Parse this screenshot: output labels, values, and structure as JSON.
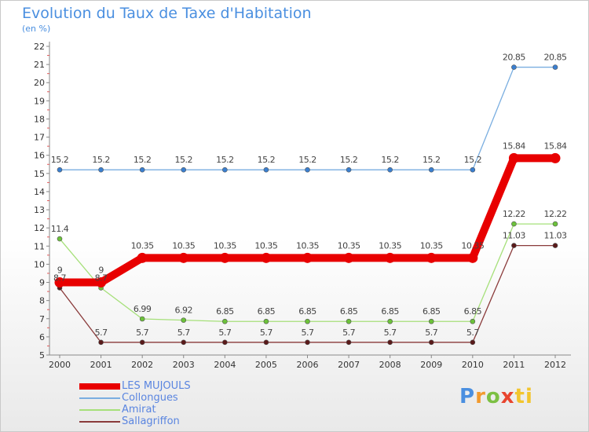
{
  "chart_data": {
    "type": "line",
    "title": "Evolution du Taux de Taxe d'Habitation",
    "unit_label": "(en %)",
    "x": [
      "2000",
      "2001",
      "2002",
      "2003",
      "2004",
      "2005",
      "2006",
      "2007",
      "2008",
      "2009",
      "2010",
      "2011",
      "2012"
    ],
    "ylim": [
      5,
      22
    ],
    "yticks": [
      5,
      6,
      7,
      8,
      9,
      10,
      11,
      12,
      13,
      14,
      15,
      16,
      17,
      18,
      19,
      20,
      21,
      22
    ],
    "grid": false,
    "series": [
      {
        "name": "LES MUJOULS",
        "color": "#e80000",
        "emphasis": true,
        "values": [
          9,
          9,
          10.35,
          10.35,
          10.35,
          10.35,
          10.35,
          10.35,
          10.35,
          10.35,
          10.35,
          15.84,
          15.84
        ],
        "labels": [
          "9",
          "9",
          "10.35",
          "10.35",
          "10.35",
          "10.35",
          "10.35",
          "10.35",
          "10.35",
          "10.35",
          "10.35",
          "15.84",
          "15.84"
        ]
      },
      {
        "name": "Collongues",
        "color": "#7aaee0",
        "point_color": "#3a7fd0",
        "values": [
          15.2,
          15.2,
          15.2,
          15.2,
          15.2,
          15.2,
          15.2,
          15.2,
          15.2,
          15.2,
          15.2,
          20.85,
          20.85
        ],
        "labels": [
          "15.2",
          "15.2",
          "15.2",
          "15.2",
          "15.2",
          "15.2",
          "15.2",
          "15.2",
          "15.2",
          "15.2",
          "15.2",
          "20.85",
          "20.85"
        ]
      },
      {
        "name": "Amirat",
        "color": "#a6e07a",
        "point_color": "#6cc23a",
        "values": [
          11.4,
          8.7,
          6.99,
          6.92,
          6.85,
          6.85,
          6.85,
          6.85,
          6.85,
          6.85,
          6.85,
          12.22,
          12.22
        ],
        "labels": [
          "11.4",
          "8.7",
          "6.99",
          "6.92",
          "6.85",
          "6.85",
          "6.85",
          "6.85",
          "6.85",
          "6.85",
          "6.85",
          "12.22",
          "12.22"
        ]
      },
      {
        "name": "Sallagriffon",
        "color": "#8a3a3a",
        "point_color": "#5a1a1a",
        "values": [
          8.7,
          5.7,
          5.7,
          5.7,
          5.7,
          5.7,
          5.7,
          5.7,
          5.7,
          5.7,
          5.7,
          11.03,
          11.03
        ],
        "labels": [
          "8.7",
          "5.7",
          "5.7",
          "5.7",
          "5.7",
          "5.7",
          "5.7",
          "5.7",
          "5.7",
          "5.7",
          "5.7",
          "11.03",
          "11.03"
        ]
      }
    ]
  },
  "logo": {
    "p": "P",
    "r": "r",
    "o": "o",
    "x": "x",
    "i": "i",
    "t": "ti"
  }
}
